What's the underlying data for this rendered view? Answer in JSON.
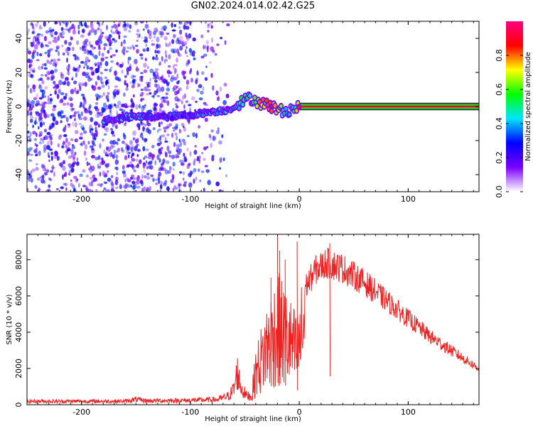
{
  "title": "GN02.2024.014.02.42.G25",
  "chart_data": [
    {
      "type": "heatmap",
      "xlabel": "Height of straight line (km)",
      "ylabel": "Frequency (Hz)",
      "xlim": [
        -250,
        165
      ],
      "ylim": [
        -50,
        50
      ],
      "x_ticks": [
        -200,
        -100,
        0,
        100
      ],
      "y_ticks": [
        -40,
        -20,
        0,
        20,
        40
      ],
      "colorbar": {
        "label": "Normalized spectral amplitude",
        "range": [
          0,
          1
        ],
        "ticks": [
          0.0,
          0.2,
          0.4,
          0.6,
          0.8
        ],
        "tick_labels": [
          "0.0",
          "0.2",
          "0.4",
          "0.6",
          "0.8"
        ],
        "colors": [
          "#ffffff",
          "#7a00ff",
          "#0000ff",
          "#00e5ff",
          "#00ff00",
          "#ffff00",
          "#ff0000",
          "#ff0080"
        ]
      },
      "noise_region_x": [
        -250,
        -65
      ],
      "ridge": [
        {
          "x": -180,
          "y": -8,
          "a": 0.45
        },
        {
          "x": -150,
          "y": -6,
          "a": 0.45
        },
        {
          "x": -120,
          "y": -6,
          "a": 0.4
        },
        {
          "x": -100,
          "y": -5,
          "a": 0.4
        },
        {
          "x": -80,
          "y": -3,
          "a": 0.45
        },
        {
          "x": -65,
          "y": -2,
          "a": 0.5
        },
        {
          "x": -55,
          "y": 2,
          "a": 0.55
        },
        {
          "x": -45,
          "y": 5,
          "a": 0.6
        },
        {
          "x": -35,
          "y": 2,
          "a": 0.8
        },
        {
          "x": -25,
          "y": 0,
          "a": 0.85
        },
        {
          "x": -15,
          "y": -3,
          "a": 0.6
        },
        {
          "x": -5,
          "y": -1,
          "a": 0.5
        },
        {
          "x": 0,
          "y": 0,
          "a": 0.95
        },
        {
          "x": 50,
          "y": 0,
          "a": 1.0
        },
        {
          "x": 100,
          "y": 0,
          "a": 1.0
        },
        {
          "x": 165,
          "y": 0,
          "a": 1.0
        }
      ]
    },
    {
      "type": "line",
      "xlabel": "Height of straight line (km)",
      "ylabel": "SNR (10 * v/v)",
      "xlim": [
        -250,
        165
      ],
      "ylim": [
        0,
        9400
      ],
      "x_ticks": [
        -200,
        -100,
        0,
        100
      ],
      "y_ticks": [
        0,
        2000,
        4000,
        6000,
        8000
      ],
      "series": [
        {
          "color": "#ee2222",
          "envelope": [
            {
              "x": -250,
              "y": 200
            },
            {
              "x": -200,
              "y": 200
            },
            {
              "x": -160,
              "y": 200
            },
            {
              "x": -150,
              "y": 300
            },
            {
              "x": -140,
              "y": 230
            },
            {
              "x": -100,
              "y": 250
            },
            {
              "x": -75,
              "y": 300
            },
            {
              "x": -65,
              "y": 500
            },
            {
              "x": -60,
              "y": 900
            },
            {
              "x": -57,
              "y": 1900
            },
            {
              "x": -53,
              "y": 900
            },
            {
              "x": -48,
              "y": 500
            },
            {
              "x": -44,
              "y": 600
            },
            {
              "x": -40,
              "y": 2500
            },
            {
              "x": -30,
              "y": 4500
            },
            {
              "x": -20,
              "y": 6000
            },
            {
              "x": -10,
              "y": 5000
            },
            {
              "x": -2,
              "y": 4000
            },
            {
              "x": 5,
              "y": 6500
            },
            {
              "x": 15,
              "y": 7500
            },
            {
              "x": 25,
              "y": 7900
            },
            {
              "x": 40,
              "y": 7600
            },
            {
              "x": 60,
              "y": 6800
            },
            {
              "x": 80,
              "y": 5800
            },
            {
              "x": 100,
              "y": 4800
            },
            {
              "x": 120,
              "y": 3800
            },
            {
              "x": 140,
              "y": 3000
            },
            {
              "x": 165,
              "y": 2000
            }
          ],
          "peaks": [
            {
              "x": -20,
              "y": 9400
            },
            {
              "x": -18,
              "y": 8500
            },
            {
              "x": -13,
              "y": 8000
            },
            {
              "x": -26,
              "y": 7000
            },
            {
              "x": -2,
              "y": 9000
            },
            {
              "x": 28,
              "y": 8900
            }
          ]
        }
      ]
    }
  ]
}
